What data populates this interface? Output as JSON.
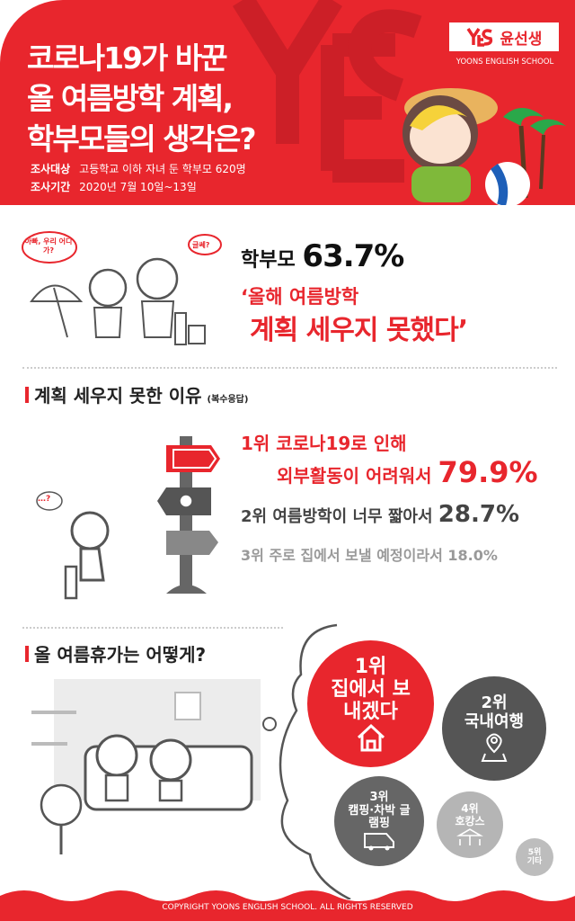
{
  "header": {
    "watermark": "YES",
    "title_lines": [
      "코로나19가 바꾼",
      "올 여름방학 계획,",
      "학부모들의 생각은?"
    ],
    "survey_target_label": "조사대상",
    "survey_target": "고등학교 이하 자녀 둔 학부모 620명",
    "survey_period_label": "조사기간",
    "survey_period": "2020년 7월 10일~13일",
    "logo_mark": "YES",
    "logo_name": "윤선생",
    "logo_sub": "YOONS ENGLISH SCHOOL"
  },
  "headline": {
    "bubble_child": "아빠, 우리 어디가?",
    "bubble_parent": "글쎄?",
    "subject": "학부모",
    "percent": "63.7%",
    "quote_line1": "‘올해 여름방학",
    "quote_line2": "계획 세우지 못했다’"
  },
  "reasons": {
    "heading": "계획 세우지 못한 이유",
    "note": "(복수응답)",
    "thought": "…?",
    "items": [
      {
        "rank": "1위",
        "text_line1": "코로나19로 인해",
        "text_line2": "외부활동이 어려워서",
        "percent": "79.9%"
      },
      {
        "rank": "2위",
        "text": "여름방학이 너무 짧아서",
        "percent": "28.7%"
      },
      {
        "rank": "3위",
        "text": "주로 집에서 보낼 예정이라서",
        "percent": "18.0%"
      }
    ]
  },
  "vacation": {
    "heading": "올 여름휴가는 어떻게?",
    "items": [
      {
        "rank": "1위",
        "label": "집에서 보내겠다",
        "icon": "house-icon",
        "color": "#e8262d"
      },
      {
        "rank": "2위",
        "label": "국내여행",
        "icon": "map-pin-icon",
        "color": "#555555"
      },
      {
        "rank": "3위",
        "label": "캠핑·차박 글램핑",
        "icon": "camper-van-icon",
        "color": "#666666"
      },
      {
        "rank": "4위",
        "label": "호캉스",
        "icon": "parasol-icon",
        "color": "#b5b5b5"
      },
      {
        "rank": "5위",
        "label": "기타",
        "color": "#bdbdbd"
      }
    ]
  },
  "footer": {
    "copyright": "COPYRIGHT YOONS ENGLISH SCHOOL. ALL RIGHTS RESERVED"
  }
}
